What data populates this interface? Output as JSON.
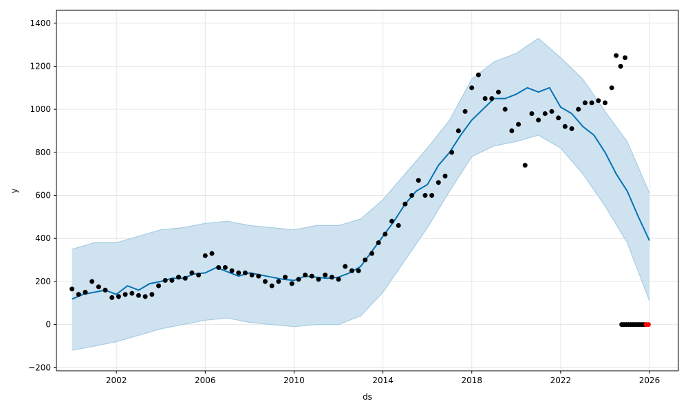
{
  "chart_data": {
    "type": "line",
    "xlabel": "ds",
    "ylabel": "y",
    "xlim": [
      1999.3,
      2027.3
    ],
    "ylim": [
      -215,
      1460
    ],
    "grid": true,
    "x_ticks": [
      2002,
      2006,
      2010,
      2014,
      2018,
      2022,
      2026
    ],
    "x_tick_labels": [
      "2002",
      "2006",
      "2010",
      "2014",
      "2018",
      "2022",
      "2026"
    ],
    "y_ticks": [
      -200,
      0,
      200,
      400,
      600,
      800,
      1000,
      1200,
      1400
    ],
    "y_tick_labels": [
      "−200",
      "0",
      "200",
      "400",
      "600",
      "800",
      "1000",
      "1200",
      "1400"
    ],
    "colors": {
      "forecast": "#0072B2",
      "interval_fill": "#cfe2f0",
      "interval_edge": "#a6cde3",
      "observed": "#000000",
      "highlight": "#ff0000",
      "grid": "#e6e6e6"
    },
    "series": [
      {
        "role": "forecast_yhat",
        "x": [
          2000.0,
          2000.5,
          2001.0,
          2001.5,
          2002.0,
          2002.5,
          2003.0,
          2003.5,
          2004.0,
          2004.5,
          2005.0,
          2005.5,
          2006.0,
          2006.5,
          2007.0,
          2007.5,
          2008.0,
          2008.5,
          2009.0,
          2009.5,
          2010.0,
          2010.5,
          2011.0,
          2011.5,
          2012.0,
          2012.5,
          2013.0,
          2013.5,
          2014.0,
          2014.5,
          2015.0,
          2015.5,
          2016.0,
          2016.5,
          2017.0,
          2017.5,
          2018.0,
          2018.5,
          2019.0,
          2019.5,
          2020.0,
          2020.5,
          2021.0,
          2021.5,
          2022.0,
          2022.5,
          2023.0,
          2023.5,
          2024.0,
          2024.5,
          2025.0,
          2025.5,
          2026.0
        ],
        "y": [
          118,
          140,
          150,
          160,
          140,
          180,
          160,
          190,
          200,
          215,
          215,
          235,
          240,
          265,
          245,
          225,
          240,
          230,
          220,
          210,
          205,
          225,
          220,
          215,
          220,
          240,
          270,
          340,
          410,
          480,
          560,
          620,
          650,
          740,
          800,
          880,
          950,
          1000,
          1050,
          1050,
          1070,
          1100,
          1080,
          1100,
          1010,
          980,
          920,
          880,
          800,
          700,
          620,
          500,
          390
        ]
      },
      {
        "role": "forecast_upper",
        "x": [
          2000.0,
          2001.0,
          2002.0,
          2003.0,
          2004.0,
          2005.0,
          2006.0,
          2007.0,
          2008.0,
          2009.0,
          2010.0,
          2011.0,
          2012.0,
          2013.0,
          2014.0,
          2015.0,
          2016.0,
          2017.0,
          2018.0,
          2019.0,
          2020.0,
          2021.0,
          2022.0,
          2023.0,
          2024.0,
          2025.0,
          2026.0
        ],
        "y": [
          350,
          380,
          380,
          410,
          440,
          450,
          470,
          480,
          460,
          450,
          440,
          460,
          460,
          490,
          580,
          700,
          820,
          950,
          1140,
          1220,
          1260,
          1330,
          1240,
          1140,
          990,
          850,
          610
        ]
      },
      {
        "role": "forecast_lower",
        "x": [
          2000.0,
          2001.0,
          2002.0,
          2003.0,
          2004.0,
          2005.0,
          2006.0,
          2007.0,
          2008.0,
          2009.0,
          2010.0,
          2011.0,
          2012.0,
          2013.0,
          2014.0,
          2015.0,
          2016.0,
          2017.0,
          2018.0,
          2019.0,
          2020.0,
          2021.0,
          2022.0,
          2023.0,
          2024.0,
          2025.0,
          2026.0
        ],
        "y": [
          -120,
          -100,
          -80,
          -50,
          -20,
          0,
          20,
          30,
          10,
          0,
          -10,
          0,
          0,
          40,
          150,
          300,
          450,
          620,
          780,
          830,
          850,
          880,
          820,
          700,
          550,
          380,
          110
        ]
      },
      {
        "role": "observed",
        "x": [
          2000.0,
          2000.3,
          2000.6,
          2000.9,
          2001.2,
          2001.5,
          2001.8,
          2002.1,
          2002.4,
          2002.7,
          2003.0,
          2003.3,
          2003.6,
          2003.9,
          2004.2,
          2004.5,
          2004.8,
          2005.1,
          2005.4,
          2005.7,
          2006.0,
          2006.3,
          2006.6,
          2006.9,
          2007.2,
          2007.5,
          2007.8,
          2008.1,
          2008.4,
          2008.7,
          2009.0,
          2009.3,
          2009.6,
          2009.9,
          2010.2,
          2010.5,
          2010.8,
          2011.1,
          2011.4,
          2011.7,
          2012.0,
          2012.3,
          2012.6,
          2012.9,
          2013.2,
          2013.5,
          2013.8,
          2014.1,
          2014.4,
          2014.7,
          2015.0,
          2015.3,
          2015.6,
          2015.9,
          2016.2,
          2016.5,
          2016.8,
          2017.1,
          2017.4,
          2017.7,
          2018.0,
          2018.3,
          2018.6,
          2018.9,
          2019.2,
          2019.5,
          2019.8,
          2020.1,
          2020.4,
          2020.7,
          2021.0,
          2021.3,
          2021.6,
          2021.9,
          2022.2,
          2022.5,
          2022.8,
          2023.1,
          2023.4,
          2023.7,
          2024.0,
          2024.3,
          2024.5,
          2024.7,
          2024.9
        ],
        "y": [
          165,
          140,
          150,
          200,
          175,
          160,
          125,
          130,
          140,
          145,
          135,
          130,
          140,
          180,
          205,
          205,
          220,
          215,
          240,
          230,
          320,
          330,
          265,
          265,
          250,
          240,
          240,
          230,
          225,
          200,
          180,
          200,
          220,
          190,
          210,
          230,
          225,
          210,
          230,
          220,
          210,
          270,
          250,
          250,
          300,
          330,
          380,
          420,
          480,
          460,
          560,
          600,
          670,
          600,
          600,
          660,
          690,
          800,
          900,
          990,
          1100,
          1160,
          1050,
          1050,
          1080,
          1000,
          900,
          930,
          740,
          980,
          950,
          980,
          990,
          960,
          920,
          910,
          1000,
          1030,
          1030,
          1040,
          1030,
          1100,
          1250,
          1200,
          1240
        ]
      },
      {
        "role": "observed_zero",
        "x": [
          2024.75,
          2024.85,
          2024.95,
          2025.05,
          2025.15,
          2025.25,
          2025.35,
          2025.45,
          2025.55,
          2025.65,
          2025.75
        ],
        "y": [
          0,
          0,
          0,
          0,
          0,
          0,
          0,
          0,
          0,
          0,
          0
        ]
      },
      {
        "role": "observed_zero_highlight",
        "x": [
          2025.85,
          2025.95
        ],
        "y": [
          0,
          0
        ]
      }
    ]
  }
}
